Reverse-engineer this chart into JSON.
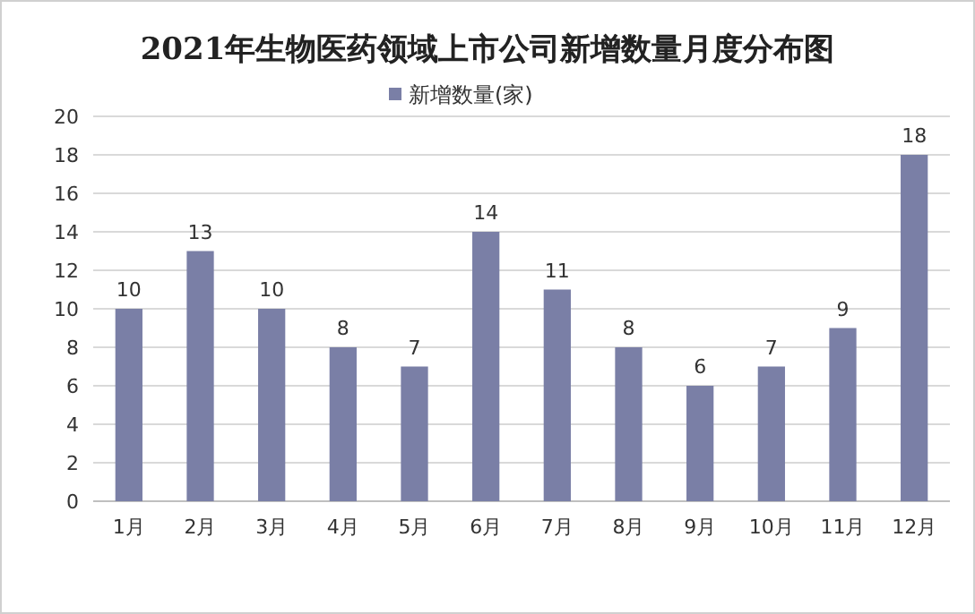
{
  "chart_data": {
    "type": "bar",
    "title": "2021年生物医药领域上市公司新增数量月度分布图",
    "categories": [
      "1月",
      "2月",
      "3月",
      "4月",
      "5月",
      "6月",
      "7月",
      "8月",
      "9月",
      "10月",
      "11月",
      "12月"
    ],
    "series": [
      {
        "name": "新增数量(家)",
        "color": "#7a7fa6",
        "values": [
          10,
          13,
          10,
          8,
          7,
          14,
          11,
          8,
          6,
          7,
          9,
          18
        ]
      }
    ],
    "ylim": [
      0,
      20
    ],
    "yticks": [
      0,
      2,
      4,
      6,
      8,
      10,
      12,
      14,
      16,
      18,
      20
    ],
    "grid": "y",
    "legend": "top",
    "data_labels": true
  }
}
